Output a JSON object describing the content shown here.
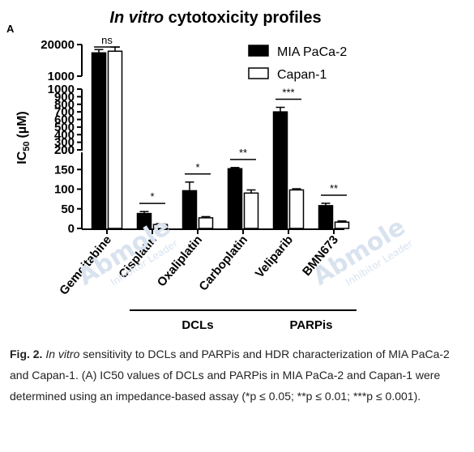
{
  "panel_label": "A",
  "figure_caption": {
    "fig_label": "Fig. 2.",
    "italic_lead": "In vitro",
    "text": " sensitivity to DCLs and PARPis and HDR characterization of MIA PaCa-2 and Capan-1. (A) IC50 values of DCLs and PARPis in MIA PaCa-2 and Capan-1 were determined using an impedance-based assay (*p ≤ 0.05; **p ≤ 0.01; ***p ≤ 0.001)."
  },
  "watermark": {
    "brand": "Abmole",
    "tagline": "Inhibitor Leader"
  },
  "colors": {
    "series1": "#000000",
    "series2": "#ffffff",
    "watermark": "#d9e3ef"
  },
  "chart_data": {
    "type": "bar",
    "title": "In vitro cytotoxicity profiles",
    "title_italic_part": "In vitro",
    "title_rest": " cytotoxicity profiles",
    "ylabel_main": "IC",
    "ylabel_sub": "50",
    "ylabel_unit": "(µM)",
    "xlabel": "",
    "categories": [
      "Gemcitabine",
      "Cisplatin",
      "Oxaliplatin",
      "Carboplatin",
      "Veliparib",
      "BMN673"
    ],
    "series": [
      {
        "name": "MIA PaCa-2",
        "values": [
          15000,
          38,
          96,
          152,
          700,
          58
        ],
        "errors": [
          2000,
          5,
          22,
          3,
          60,
          6
        ]
      },
      {
        "name": "Capan-1",
        "values": [
          16000,
          10,
          27,
          90,
          98,
          16
        ],
        "errors": [
          2500,
          2,
          3,
          8,
          3,
          3
        ]
      }
    ],
    "y_axis": {
      "broken": true,
      "segments": [
        {
          "range": [
            0,
            200
          ],
          "ticks": [
            "0",
            "50",
            "100",
            "150",
            "200"
          ]
        },
        {
          "range": [
            200,
            1000
          ],
          "ticks": [
            "200",
            "300",
            "400",
            "500",
            "600",
            "700",
            "800",
            "900",
            "1000"
          ]
        },
        {
          "range": [
            1000,
            20000
          ],
          "ticks": [
            "1000",
            "20000"
          ]
        }
      ]
    },
    "significance": [
      {
        "category": "Gemcitabine",
        "label": "ns"
      },
      {
        "category": "Cisplatin",
        "label": "*"
      },
      {
        "category": "Oxaliplatin",
        "label": "*"
      },
      {
        "category": "Carboplatin",
        "label": "**"
      },
      {
        "category": "Veliparib",
        "label": "***"
      },
      {
        "category": "BMN673",
        "label": "**"
      }
    ],
    "groups": [
      {
        "label": "DCLs",
        "from": "Cisplatin",
        "to": "Carboplatin"
      },
      {
        "label": "PARPis",
        "from": "Veliparib",
        "to": "BMN673"
      }
    ],
    "legend_position": "top-right",
    "grid": false
  }
}
